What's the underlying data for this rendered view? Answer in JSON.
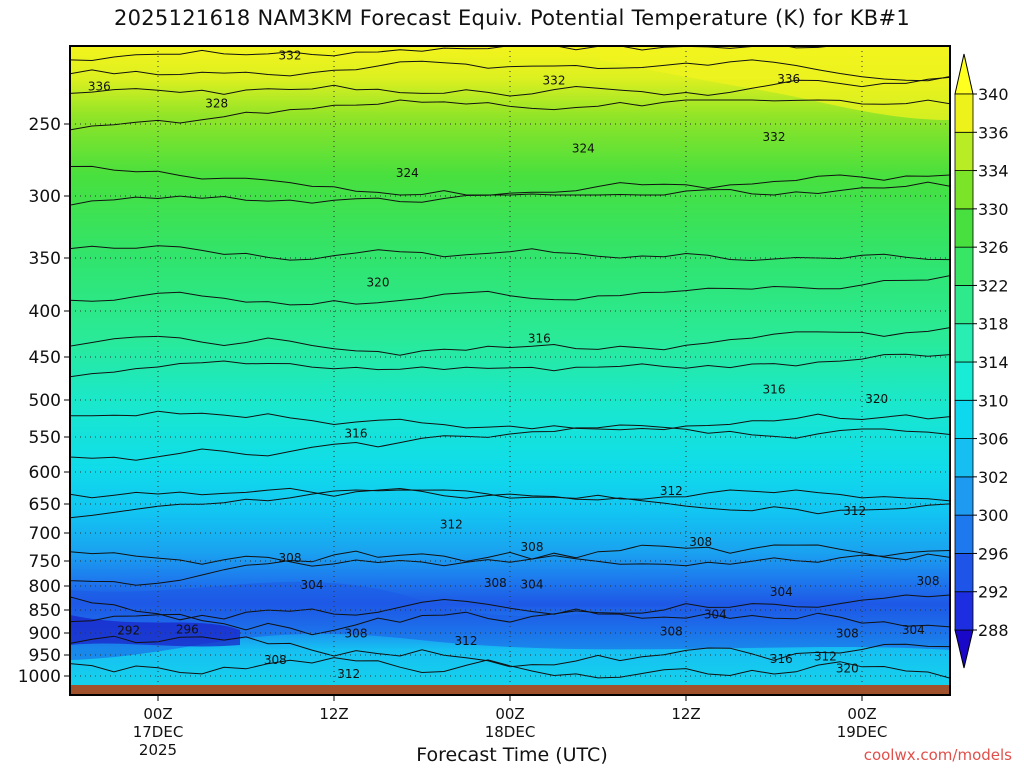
{
  "chart_data": {
    "type": "heatmap",
    "title": "2025121618 NAM3KM Forecast Equiv. Potential Temperature (K) for KB#1",
    "xlabel": "Forecast Time (UTC)",
    "ylabel": "",
    "x_ticks": [
      {
        "label": "00Z",
        "sub1": "17DEC",
        "sub2": "2025",
        "hour": 6
      },
      {
        "label": "12Z",
        "sub1": "",
        "sub2": "",
        "hour": 18
      },
      {
        "label": "00Z",
        "sub1": "18DEC",
        "sub2": "",
        "hour": 30
      },
      {
        "label": "12Z",
        "sub1": "",
        "sub2": "",
        "hour": 42
      },
      {
        "label": "00Z",
        "sub1": "19DEC",
        "sub2": "",
        "hour": 54
      }
    ],
    "xlim_hours": [
      0,
      60
    ],
    "y_ticks": [
      250,
      300,
      350,
      400,
      450,
      500,
      550,
      600,
      650,
      700,
      750,
      800,
      850,
      900,
      950,
      1000
    ],
    "ylim_hPa": [
      200,
      1000
    ],
    "colorbar": {
      "labels": [
        288,
        292,
        296,
        300,
        302,
        306,
        310,
        314,
        318,
        322,
        326,
        330,
        334,
        336,
        340
      ],
      "colors": [
        "#1a08c8",
        "#1d2ee0",
        "#1e55e8",
        "#1e78ee",
        "#1e9af0",
        "#16bef2",
        "#0ed8ee",
        "#18ecd6",
        "#28eeb4",
        "#2eea8c",
        "#38e666",
        "#48e03e",
        "#7ce428",
        "#b8ec24",
        "#ecf21a",
        "#ffff20"
      ]
    },
    "contour_labels": [
      {
        "value": 336,
        "hour": 2.0,
        "p": 226
      },
      {
        "value": 332,
        "hour": 15.0,
        "p": 206
      },
      {
        "value": 332,
        "hour": 33.0,
        "p": 222
      },
      {
        "value": 336,
        "hour": 49.0,
        "p": 221
      },
      {
        "value": 328,
        "hour": 10.0,
        "p": 237
      },
      {
        "value": 332,
        "hour": 48.0,
        "p": 259
      },
      {
        "value": 324,
        "hour": 23.0,
        "p": 284
      },
      {
        "value": 324,
        "hour": 35.0,
        "p": 267
      },
      {
        "value": 320,
        "hour": 21.0,
        "p": 373
      },
      {
        "value": 316,
        "hour": 32.0,
        "p": 430
      },
      {
        "value": 316,
        "hour": 19.5,
        "p": 545
      },
      {
        "value": 316,
        "hour": 48.0,
        "p": 488
      },
      {
        "value": 320,
        "hour": 55.0,
        "p": 499
      },
      {
        "value": 312,
        "hour": 41.0,
        "p": 630
      },
      {
        "value": 312,
        "hour": 26.0,
        "p": 685
      },
      {
        "value": 312,
        "hour": 53.5,
        "p": 662
      },
      {
        "value": 308,
        "hour": 15.0,
        "p": 745
      },
      {
        "value": 308,
        "hour": 31.5,
        "p": 725
      },
      {
        "value": 308,
        "hour": 43.0,
        "p": 716
      },
      {
        "value": 304,
        "hour": 16.5,
        "p": 798
      },
      {
        "value": 308,
        "hour": 29.0,
        "p": 794
      },
      {
        "value": 304,
        "hour": 31.5,
        "p": 797
      },
      {
        "value": 308,
        "hour": 58.5,
        "p": 790
      },
      {
        "value": 304,
        "hour": 48.5,
        "p": 812
      },
      {
        "value": 304,
        "hour": 44.0,
        "p": 860
      },
      {
        "value": 292,
        "hour": 4.0,
        "p": 895
      },
      {
        "value": 296,
        "hour": 8.0,
        "p": 892
      },
      {
        "value": 308,
        "hour": 19.5,
        "p": 901
      },
      {
        "value": 312,
        "hour": 27.0,
        "p": 918
      },
      {
        "value": 308,
        "hour": 41.0,
        "p": 897
      },
      {
        "value": 308,
        "hour": 53.0,
        "p": 901
      },
      {
        "value": 304,
        "hour": 57.5,
        "p": 893
      },
      {
        "value": 308,
        "hour": 14.0,
        "p": 962
      },
      {
        "value": 316,
        "hour": 48.5,
        "p": 960
      },
      {
        "value": 312,
        "hour": 51.5,
        "p": 953
      },
      {
        "value": 320,
        "hour": 53.0,
        "p": 982
      },
      {
        "value": 312,
        "hour": 19.0,
        "p": 995
      }
    ],
    "grid": true
  },
  "credit": "coolwx.com/models",
  "colors": {
    "ground": "#a0522d",
    "frame": "#000000"
  }
}
